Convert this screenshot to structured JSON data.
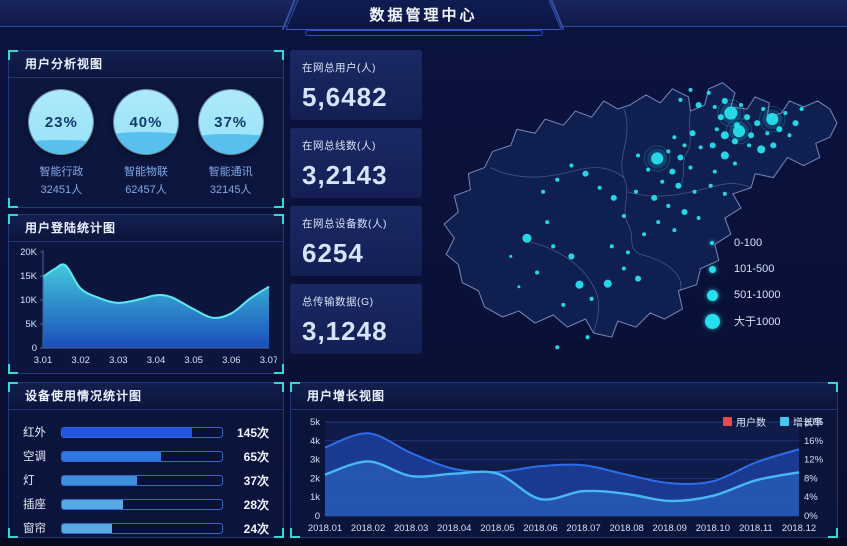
{
  "header": {
    "title": "数据管理中心"
  },
  "colors": {
    "accent_cyan": "#35d8d6",
    "bubble": "#27e0ed",
    "bar_border": "#3a68d0",
    "panel_border": "#20397c"
  },
  "chart_data": [
    {
      "id": "user_analysis",
      "type": "gauge",
      "title": "用户分析视图",
      "items": [
        {
          "percent": 23,
          "percent_label": "23%",
          "label": "智能行政",
          "count": "32451人"
        },
        {
          "percent": 40,
          "percent_label": "40%",
          "label": "智能物联",
          "count": "62457人"
        },
        {
          "percent": 37,
          "percent_label": "37%",
          "label": "智能通讯",
          "count": "32145人"
        }
      ]
    },
    {
      "id": "login_stats",
      "type": "area",
      "title": "用户登陆统计图",
      "categories": [
        "3.01",
        "3.02",
        "3.03",
        "3.04",
        "3.05",
        "3.06",
        "3.07"
      ],
      "samples": [
        [
          0,
          14.8
        ],
        [
          0.3,
          16.4
        ],
        [
          0.6,
          17.2
        ],
        [
          1,
          12.4
        ],
        [
          1.5,
          10.4
        ],
        [
          2,
          9.4
        ],
        [
          2.6,
          10.2
        ],
        [
          3,
          11.0
        ],
        [
          3.4,
          10.6
        ],
        [
          4,
          8.1
        ],
        [
          4.5,
          6.3
        ],
        [
          5,
          7.2
        ],
        [
          5.5,
          10.3
        ],
        [
          6,
          12.8
        ]
      ],
      "y_ticks": [
        "0",
        "5K",
        "10K",
        "15K",
        "20K"
      ],
      "ymax": 20,
      "line_color": "#5ceaf2",
      "fill_top": "#46d2e4",
      "fill_bottom": "#1b55c8"
    },
    {
      "id": "device_usage",
      "type": "hbar",
      "title": "设备使用情况统计图",
      "categories": [
        "红外",
        "空调",
        "灯",
        "插座",
        "窗帘"
      ],
      "values": [
        145,
        65,
        37,
        28,
        24
      ],
      "value_labels": [
        "145次",
        "65次",
        "37次",
        "28次",
        "24次"
      ],
      "fill_fractions": [
        0.81,
        0.62,
        0.47,
        0.38,
        0.31
      ],
      "fill_colors": [
        "#2356e0",
        "#2e78e2",
        "#3e90dc",
        "#55aae4",
        "#58abe0"
      ]
    },
    {
      "id": "stats",
      "type": "stat-cards",
      "cards": [
        {
          "label": "在网总用户(人)",
          "value": "5,6482"
        },
        {
          "label": "在网总线数(人)",
          "value": "3,2143"
        },
        {
          "label": "在网总设备数(人)",
          "value": "6254"
        },
        {
          "label": "总传输数据(G)",
          "value": "3,1248"
        }
      ]
    },
    {
      "id": "map",
      "type": "bubble-map",
      "legend": [
        {
          "label": "0-100",
          "size": 4
        },
        {
          "label": "101-500",
          "size": 7
        },
        {
          "label": "501-1000",
          "size": 11
        },
        {
          "label": "大于1000",
          "size": 15
        }
      ],
      "bubbles": [
        [
          252,
          55,
          2
        ],
        [
          262,
          45,
          2
        ],
        [
          270,
          60,
          3
        ],
        [
          280,
          48,
          2
        ],
        [
          286,
          62,
          2
        ],
        [
          292,
          72,
          3
        ],
        [
          296,
          56,
          3
        ],
        [
          302,
          68,
          6.5
        ],
        [
          308,
          80,
          3
        ],
        [
          312,
          60,
          2
        ],
        [
          318,
          72,
          3
        ],
        [
          322,
          90,
          3
        ],
        [
          310,
          86,
          6
        ],
        [
          328,
          78,
          3
        ],
        [
          334,
          64,
          2
        ],
        [
          338,
          88,
          2
        ],
        [
          343,
          74,
          6
        ],
        [
          350,
          84,
          3
        ],
        [
          356,
          68,
          2
        ],
        [
          360,
          90,
          2
        ],
        [
          366,
          78,
          3
        ],
        [
          372,
          64,
          2
        ],
        [
          344,
          100,
          3
        ],
        [
          332,
          104,
          4
        ],
        [
          320,
          100,
          2
        ],
        [
          306,
          96,
          3
        ],
        [
          296,
          90,
          4
        ],
        [
          288,
          84,
          2
        ],
        [
          284,
          100,
          3
        ],
        [
          296,
          110,
          4
        ],
        [
          306,
          118,
          2
        ],
        [
          286,
          126,
          2
        ],
        [
          272,
          102,
          2
        ],
        [
          264,
          88,
          3
        ],
        [
          256,
          100,
          2
        ],
        [
          246,
          92,
          2
        ],
        [
          240,
          106,
          2
        ],
        [
          252,
          112,
          3
        ],
        [
          262,
          122,
          2
        ],
        [
          244,
          126,
          3
        ],
        [
          229,
          113,
          6
        ],
        [
          220,
          124,
          2
        ],
        [
          210,
          110,
          2
        ],
        [
          234,
          136,
          2
        ],
        [
          250,
          140,
          3
        ],
        [
          266,
          146,
          2
        ],
        [
          282,
          140,
          2
        ],
        [
          296,
          148,
          2
        ],
        [
          226,
          152,
          3
        ],
        [
          208,
          146,
          2
        ],
        [
          240,
          160,
          2
        ],
        [
          256,
          166,
          3
        ],
        [
          270,
          172,
          2
        ],
        [
          246,
          184,
          2
        ],
        [
          230,
          176,
          2
        ],
        [
          216,
          188,
          2
        ],
        [
          196,
          170,
          2
        ],
        [
          186,
          152,
          3
        ],
        [
          172,
          142,
          2
        ],
        [
          158,
          128,
          3
        ],
        [
          144,
          120,
          2
        ],
        [
          130,
          134,
          2
        ],
        [
          116,
          146,
          2
        ],
        [
          100,
          192,
          4.5
        ],
        [
          126,
          200,
          2
        ],
        [
          144,
          210,
          3
        ],
        [
          110,
          226,
          2
        ],
        [
          92,
          240,
          1.5
        ],
        [
          152,
          238,
          4
        ],
        [
          164,
          252,
          2
        ],
        [
          136,
          258,
          2
        ],
        [
          180,
          237,
          4
        ],
        [
          196,
          222,
          2
        ],
        [
          210,
          232,
          3
        ],
        [
          184,
          200,
          2
        ],
        [
          200,
          206,
          2
        ],
        [
          120,
          176,
          2
        ],
        [
          84,
          210,
          1.5
        ],
        [
          160,
          290,
          2
        ],
        [
          130,
          300,
          2
        ]
      ]
    },
    {
      "id": "growth",
      "type": "dual-area",
      "title": "用户增长视图",
      "categories": [
        "2018.01",
        "2018.02",
        "2018.03",
        "2018.04",
        "2018.05",
        "2018.06",
        "2018.07",
        "2018.08",
        "2018.09",
        "2018.10",
        "2018.11",
        "2018.12"
      ],
      "series": [
        {
          "name": "用户数",
          "axis": "left",
          "line_color": "#2f6de8",
          "fill_color": "#1d3f9c",
          "values": [
            3.64,
            4.4,
            3.35,
            2.5,
            2.35,
            2.65,
            2.7,
            2.2,
            1.75,
            1.85,
            2.85,
            3.55
          ]
        },
        {
          "name": "增长率",
          "axis": "right",
          "line_color": "#49b8f2",
          "fill_color": "#2e6fd0",
          "values": [
            8.8,
            11.6,
            8.5,
            9.0,
            9.0,
            3.6,
            5.3,
            4.7,
            3.2,
            4.3,
            7.6,
            9.3
          ]
        }
      ],
      "left_ticks": [
        "0",
        "1k",
        "2k",
        "3k",
        "4k",
        "5k"
      ],
      "right_ticks": [
        "0%",
        "4%",
        "8%",
        "12%",
        "16%",
        "20%"
      ],
      "left_max": 5,
      "right_max": 20,
      "legend": [
        {
          "label": "用户数",
          "color": "#e84a4a"
        },
        {
          "label": "增长率",
          "color": "#43c8f0"
        }
      ]
    }
  ]
}
